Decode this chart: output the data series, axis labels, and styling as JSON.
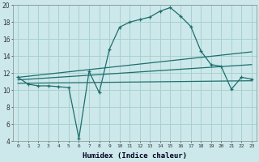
{
  "xlabel": "Humidex (Indice chaleur)",
  "bg_color": "#cce8ea",
  "grid_color": "#a8d0d0",
  "line_color": "#1e6e6e",
  "xlim": [
    -0.5,
    23.5
  ],
  "ylim": [
    4,
    20
  ],
  "yticks": [
    4,
    6,
    8,
    10,
    12,
    14,
    16,
    18,
    20
  ],
  "xticks": [
    0,
    1,
    2,
    3,
    4,
    5,
    6,
    7,
    8,
    9,
    10,
    11,
    12,
    13,
    14,
    15,
    16,
    17,
    18,
    19,
    20,
    21,
    22,
    23
  ],
  "curve1_x": [
    0,
    1,
    2,
    3,
    4,
    5,
    6,
    7,
    8,
    9,
    10,
    11,
    12,
    13,
    14,
    15,
    16,
    17,
    18,
    19,
    20,
    21,
    22,
    23
  ],
  "curve1_y": [
    11.5,
    10.7,
    10.5,
    10.5,
    10.4,
    10.3,
    4.3,
    12.2,
    9.7,
    14.8,
    17.4,
    18.0,
    18.3,
    18.6,
    19.3,
    19.7,
    18.7,
    17.5,
    14.6,
    13.0,
    12.8,
    10.1,
    11.5,
    11.3
  ],
  "line1_x": [
    0,
    23
  ],
  "line1_y": [
    11.5,
    14.5
  ],
  "line2_x": [
    0,
    23
  ],
  "line2_y": [
    11.2,
    13.0
  ],
  "line3_x": [
    0,
    23
  ],
  "line3_y": [
    10.8,
    11.1
  ]
}
